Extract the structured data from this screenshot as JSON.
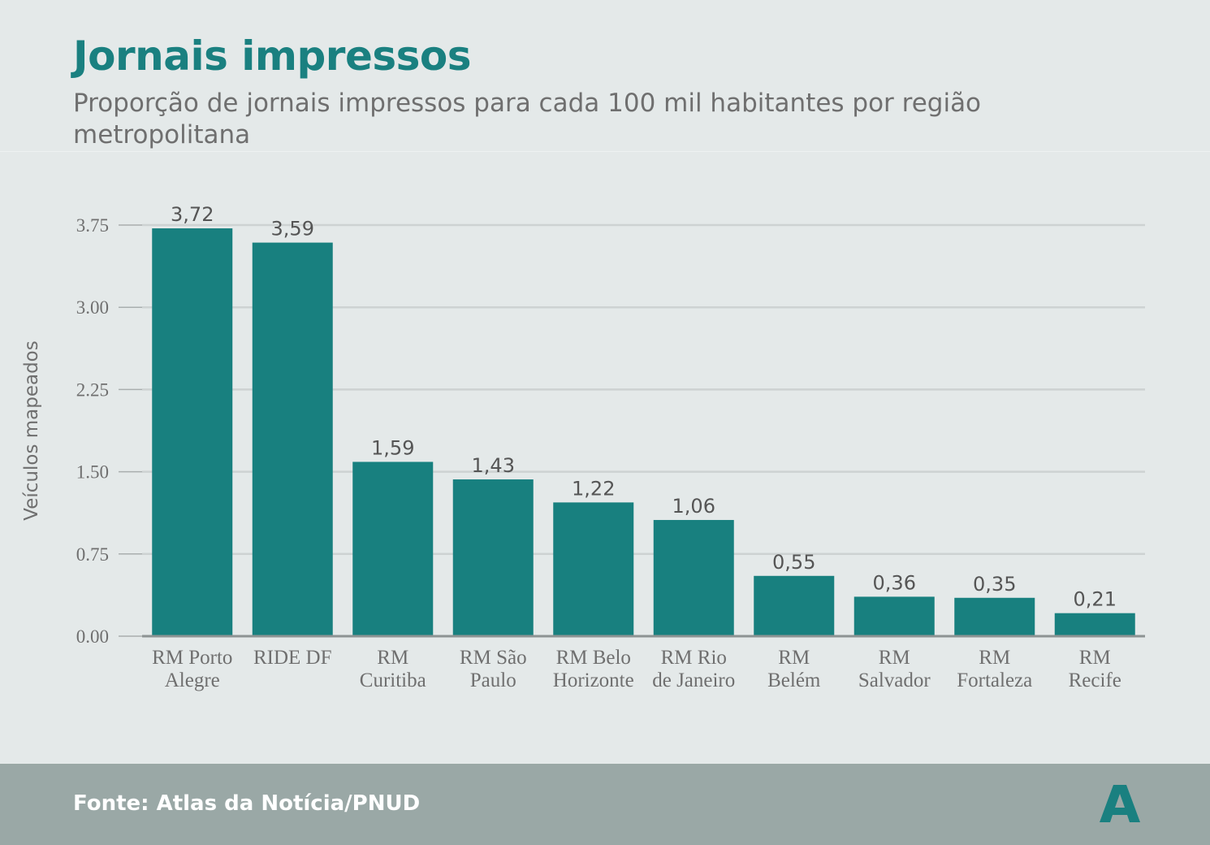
{
  "header": {
    "title": "Jornais impressos",
    "subtitle": "Proporção de jornais impressos para cada 100 mil habitantes por região metropolitana"
  },
  "footer": {
    "source": "Fonte: Atlas da Notícia/PNUD",
    "logo_letter": "A",
    "logo_icon": "atlas-logo-icon"
  },
  "colors": {
    "accent": "#1a8080",
    "bar": "#18807f",
    "text_gray": "#6f6f6f",
    "grid": "#cdd2d2",
    "footer_bg": "#9aa8a6",
    "background": "#e4e9e9"
  },
  "chart_data": {
    "type": "bar",
    "categories": [
      [
        "RM Porto",
        "Alegre"
      ],
      [
        "RIDE DF"
      ],
      [
        "RM",
        "Curitiba"
      ],
      [
        "RM São",
        "Paulo"
      ],
      [
        "RM Belo",
        "Horizonte"
      ],
      [
        "RM Rio",
        "de Janeiro"
      ],
      [
        "RM",
        "Belém"
      ],
      [
        "RM",
        "Salvador"
      ],
      [
        "RM",
        "Fortaleza"
      ],
      [
        "RM",
        "Recife"
      ]
    ],
    "values": [
      3.72,
      3.59,
      1.59,
      1.43,
      1.22,
      1.06,
      0.55,
      0.36,
      0.35,
      0.21
    ],
    "value_labels": [
      "3,72",
      "3,59",
      "1,59",
      "1,43",
      "1,22",
      "1,06",
      "0,55",
      "0,36",
      "0,35",
      "0,21"
    ],
    "yticks": [
      0,
      0.75,
      1.5,
      2.25,
      3.0,
      3.75
    ],
    "ytick_labels": [
      "0.00",
      "0.75",
      "1.50",
      "2.25",
      "3.00",
      "3.75"
    ],
    "ylabel": "Veículos mapeados",
    "xlabel": "",
    "ylim": [
      0,
      3.75
    ],
    "grid": true,
    "legend": "none"
  }
}
